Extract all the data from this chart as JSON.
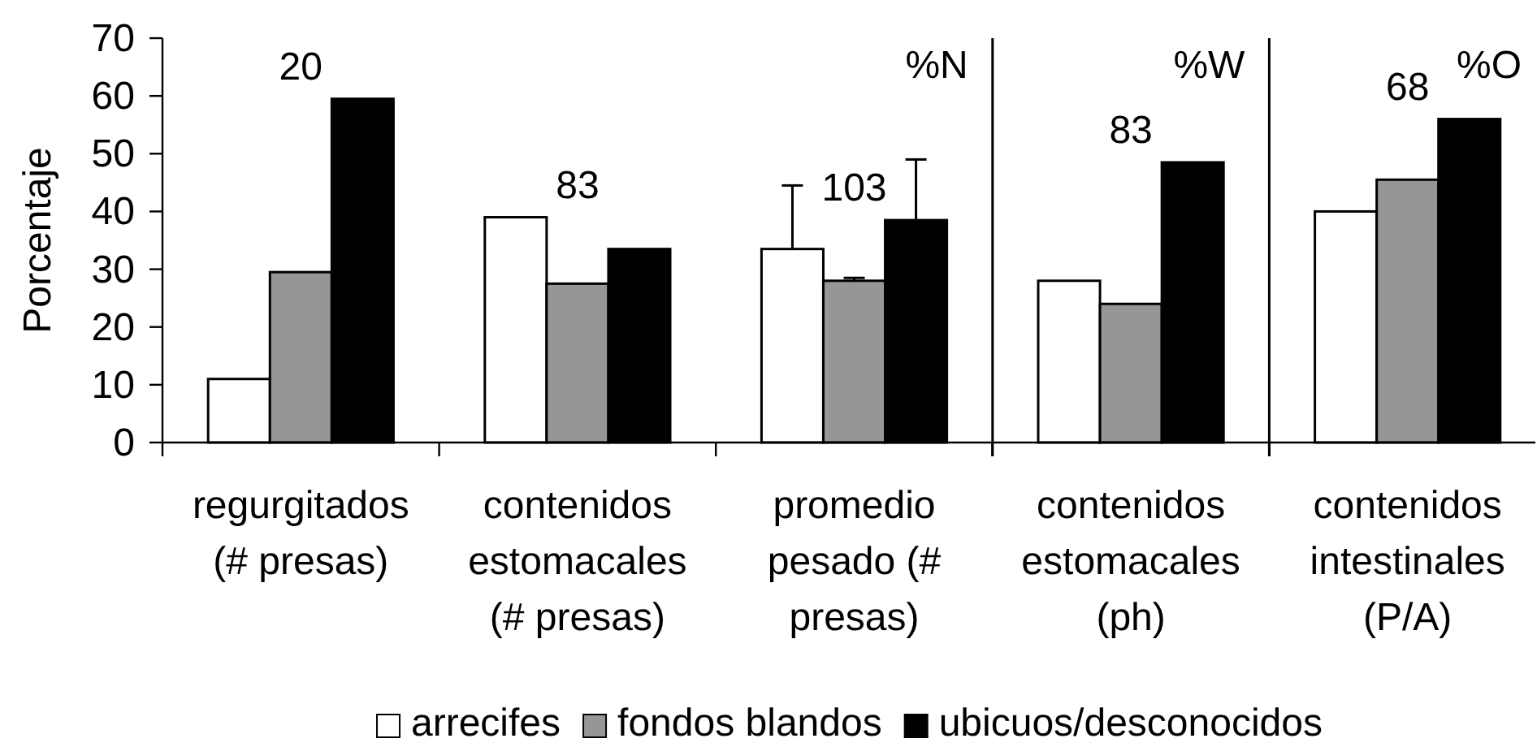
{
  "chart_data": [
    {
      "type": "bar",
      "title": "%N",
      "categories": [
        "regurgitados (# presas)",
        "contenidos estomacales (# presas)",
        "promedio pesado (# presas)"
      ],
      "series": [
        {
          "name": "arrecifes",
          "color": "#ffffff",
          "values": [
            11,
            39,
            33.5
          ],
          "errors": [
            null,
            null,
            [
              33.5,
              44.5
            ]
          ]
        },
        {
          "name": "fondos blandos",
          "color": "#969696",
          "values": [
            29.5,
            27.5,
            28
          ],
          "errors": [
            null,
            null,
            [
              28,
              28.5
            ]
          ]
        },
        {
          "name": "ubicuos/desconocidos",
          "color": "#000000",
          "values": [
            59.5,
            33.5,
            38.5
          ],
          "errors": [
            null,
            null,
            [
              38.5,
              49
            ]
          ]
        }
      ],
      "ylabel": "Porcentaje",
      "ylim": [
        0,
        70
      ],
      "yticks": [
        0,
        10,
        20,
        30,
        40,
        50,
        60,
        70
      ],
      "legend": "bottom",
      "annotations": [
        "20",
        "83",
        "103"
      ]
    },
    {
      "type": "bar",
      "title": "%W",
      "categories": [
        "contenidos estomacales (ph)"
      ],
      "series": [
        {
          "color": "#ffffff",
          "values": [
            28
          ]
        },
        {
          "color": "#969696",
          "values": [
            24
          ]
        },
        {
          "color": "#000000",
          "values": [
            48.5
          ]
        }
      ],
      "ylim": [
        0,
        70
      ],
      "tick_labels": "x",
      "annotations": [
        "83"
      ]
    },
    {
      "type": "bar",
      "title": "%O",
      "categories": [
        "contenidos intestinales (P/A)"
      ],
      "series": [
        {
          "color": "#ffffff",
          "values": [
            40
          ]
        },
        {
          "color": "#969696",
          "values": [
            45.5
          ]
        },
        {
          "color": "#000000",
          "values": [
            56
          ]
        }
      ],
      "ylim": [
        0,
        70
      ],
      "tick_labels": "x",
      "annotations": [
        "68"
      ]
    }
  ]
}
